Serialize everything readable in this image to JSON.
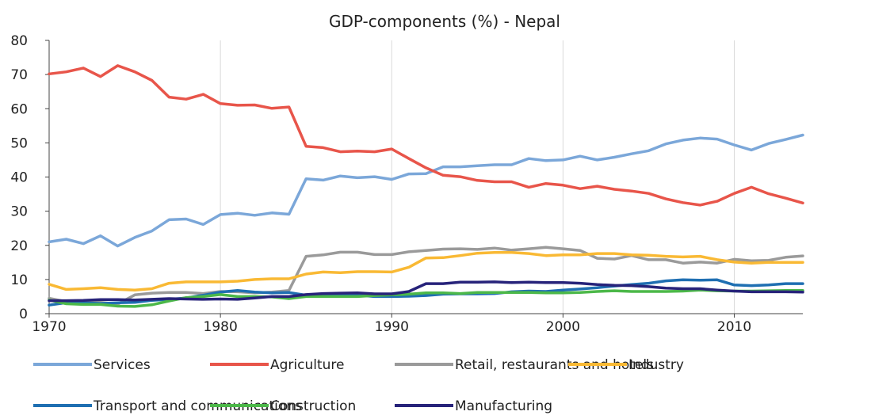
{
  "chart_data": {
    "type": "line",
    "title": "GDP-components (%)  - Nepal",
    "xlabel": "",
    "ylabel": "",
    "xlim": [
      1970,
      2014
    ],
    "ylim": [
      0,
      80
    ],
    "x_ticks": [
      1970,
      1980,
      1990,
      2000,
      2010
    ],
    "y_ticks": [
      0,
      10,
      20,
      30,
      40,
      50,
      60,
      70,
      80
    ],
    "grid": "vertical",
    "legend_position": "bottom",
    "x": [
      1970,
      1971,
      1972,
      1973,
      1974,
      1975,
      1976,
      1977,
      1978,
      1979,
      1980,
      1981,
      1982,
      1983,
      1984,
      1985,
      1986,
      1987,
      1988,
      1989,
      1990,
      1991,
      1992,
      1993,
      1994,
      1995,
      1996,
      1997,
      1998,
      1999,
      2000,
      2001,
      2002,
      2003,
      2004,
      2005,
      2006,
      2007,
      2008,
      2009,
      2010,
      2011,
      2012,
      2013,
      2014
    ],
    "series": [
      {
        "name": "Services",
        "color": "#7ba7d9",
        "values": [
          21,
          21.8,
          20.5,
          22.8,
          19.8,
          22.3,
          24.2,
          27.5,
          27.7,
          26.1,
          29,
          29.4,
          28.8,
          29.5,
          29.1,
          39.5,
          39.1,
          40.3,
          39.8,
          40.1,
          39.3,
          40.9,
          41,
          43,
          43,
          43.3,
          43.6,
          43.6,
          45.4,
          44.8,
          45,
          46.1,
          45,
          45.8,
          46.8,
          47.7,
          49.7,
          50.8,
          51.4,
          51.1,
          49.4,
          47.9,
          49.8,
          51,
          52.3
        ]
      },
      {
        "name": "Agriculture",
        "color": "#e8554a",
        "values": [
          70.2,
          70.8,
          71.9,
          69.4,
          72.6,
          70.8,
          68.3,
          63.4,
          62.8,
          64.2,
          61.5,
          61,
          61.1,
          60.1,
          60.5,
          49,
          48.6,
          47.4,
          47.6,
          47.4,
          48.2,
          45.4,
          42.7,
          40.5,
          40.1,
          39,
          38.6,
          38.6,
          37,
          38.1,
          37.6,
          36.6,
          37.3,
          36.4,
          35.9,
          35.2,
          33.6,
          32.5,
          31.8,
          32.9,
          35.2,
          37,
          35.1,
          33.8,
          32.4
        ]
      },
      {
        "name": "Retail, restaurants and hotels",
        "color": "#9a9a9a",
        "values": [
          4.5,
          3.5,
          3.3,
          3.3,
          2.8,
          5.5,
          6,
          6.2,
          6.2,
          5.9,
          6.5,
          6.4,
          6.1,
          6.3,
          6.8,
          16.8,
          17.2,
          18,
          18,
          17.3,
          17.3,
          18.1,
          18.5,
          18.9,
          19,
          18.8,
          19.2,
          18.6,
          19,
          19.4,
          19,
          18.5,
          16.2,
          16,
          17,
          15.8,
          15.8,
          14.8,
          15.1,
          14.8,
          15.9,
          15.5,
          15.6,
          16.5,
          16.9
        ]
      },
      {
        "name": "Industry",
        "color": "#f9b934",
        "values": [
          8.6,
          7.1,
          7.3,
          7.6,
          7.1,
          6.9,
          7.3,
          8.9,
          9.3,
          9.3,
          9.3,
          9.5,
          10,
          10.2,
          10.2,
          11.6,
          12.2,
          12,
          12.3,
          12.3,
          12.2,
          13.6,
          16.3,
          16.4,
          17,
          17.7,
          17.9,
          17.9,
          17.6,
          17,
          17.2,
          17.2,
          17.6,
          17.6,
          17.2,
          17.1,
          16.8,
          16.6,
          16.8,
          15.8,
          15.1,
          14.8,
          15,
          15,
          15
        ]
      },
      {
        "name": "Transport and communications",
        "color": "#1f6fb2",
        "values": [
          2.5,
          3.2,
          3.2,
          3,
          3.2,
          3.3,
          3.9,
          4.2,
          4.6,
          5.4,
          6.3,
          6.8,
          6.3,
          6.1,
          6.2,
          5.4,
          5.5,
          5.5,
          5.4,
          5,
          5,
          5.1,
          5.3,
          5.7,
          5.8,
          5.8,
          5.9,
          6.4,
          6.6,
          6.5,
          6.9,
          7.2,
          7.6,
          8.1,
          8.5,
          8.9,
          9.6,
          9.9,
          9.8,
          9.9,
          8.4,
          8.2,
          8.4,
          8.8,
          8.8
        ]
      },
      {
        "name": "Construction",
        "color": "#4cb849",
        "values": [
          4,
          2.9,
          2.7,
          2.7,
          2.2,
          2.1,
          2.6,
          3.7,
          4.7,
          5,
          5.6,
          5,
          5,
          4.9,
          4.4,
          5,
          5,
          5,
          5,
          5.3,
          5.5,
          5.7,
          6.1,
          6.1,
          5.9,
          6.2,
          6.2,
          6.2,
          6.2,
          6.1,
          6.1,
          6.2,
          6.5,
          6.7,
          6.5,
          6.5,
          6.5,
          6.6,
          6.9,
          6.7,
          6.6,
          6.6,
          6.7,
          6.8,
          6.8
        ]
      },
      {
        "name": "Manufacturing",
        "color": "#27237a",
        "values": [
          3.8,
          3.8,
          3.9,
          4.1,
          4.1,
          4,
          4.2,
          4.4,
          4.3,
          4.2,
          4.3,
          4.2,
          4.6,
          5,
          5,
          5.6,
          5.9,
          6,
          6.1,
          5.8,
          5.8,
          6.5,
          8.8,
          8.8,
          9.2,
          9.2,
          9.3,
          9.1,
          9.2,
          9.1,
          9.1,
          8.9,
          8.5,
          8.3,
          8.2,
          7.9,
          7.5,
          7.3,
          7.3,
          6.9,
          6.6,
          6.4,
          6.4,
          6.4,
          6.3
        ]
      }
    ]
  }
}
